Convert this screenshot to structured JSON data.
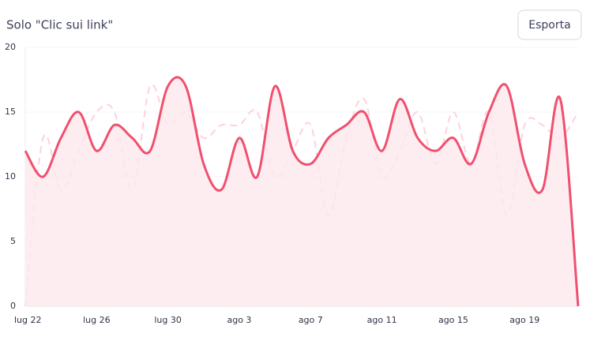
{
  "chart_data": {
    "type": "line",
    "title": "Solo \"Clic sui link\"",
    "categories": [
      "lug 22",
      null,
      null,
      null,
      "lug 26",
      null,
      null,
      null,
      "lug 30",
      null,
      null,
      null,
      "ago 3",
      null,
      null,
      null,
      "ago 7",
      null,
      null,
      null,
      "ago 11",
      null,
      null,
      null,
      "ago 15",
      null,
      null,
      null,
      "ago 19",
      null,
      null,
      null
    ],
    "series": [
      {
        "color": "#f0506e",
        "fill": "#fde8ed",
        "dashed": false,
        "values": [
          12,
          10,
          13,
          15,
          12,
          14,
          13,
          12,
          17,
          17,
          11,
          9,
          13,
          10,
          17,
          12,
          11,
          13,
          14,
          15,
          12,
          16,
          13,
          12,
          13,
          11,
          15,
          17,
          11,
          9,
          16,
          0
        ]
      },
      {
        "color": "#fcd2dc",
        "dashed": true,
        "values": [
          0,
          13,
          9,
          12,
          15,
          15,
          9,
          17,
          14,
          15,
          13,
          14,
          14,
          15,
          10,
          12,
          14,
          7,
          13,
          16,
          10,
          12,
          15,
          11,
          15,
          11,
          15,
          7,
          14,
          14,
          13,
          15
        ]
      }
    ],
    "ylim": [
      0,
      20
    ],
    "yticks": [
      0,
      5,
      10,
      15,
      20
    ],
    "grid": true
  },
  "export_button": "Esporta"
}
